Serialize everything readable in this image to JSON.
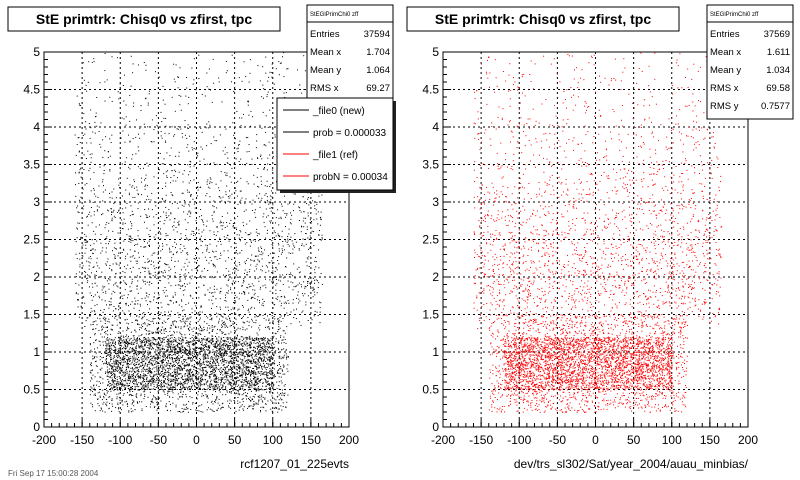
{
  "chart_data": [
    {
      "type": "scatter",
      "title": "StE primtrk: Chisq0 vs zfirst, tpc",
      "xlabel": "rcf1207_01_225evts",
      "ylabel": "",
      "xlim": [
        -200,
        200
      ],
      "ylim": [
        0,
        5
      ],
      "x_ticks": [
        "-200",
        "-150",
        "-100",
        "-50",
        "0",
        "50",
        "100",
        "150",
        "200"
      ],
      "y_ticks": [
        "0",
        "0.5",
        "1",
        "1.5",
        "2",
        "2.5",
        "3",
        "3.5",
        "4",
        "4.5",
        "5"
      ],
      "grid": true,
      "color": "#000000",
      "stats": {
        "name": "StEGlPrimChi0 zff",
        "rows": [
          {
            "label": "Entries",
            "value": "37594"
          },
          {
            "label": "Mean x",
            "value": "1.704"
          },
          {
            "label": "Mean y",
            "value": "1.064"
          },
          {
            "label": "RMS x",
            "value": "69.27"
          }
        ]
      },
      "legend": {
        "placement": "top-right",
        "entries": [
          {
            "label": "_file0 (new)",
            "color": "#000000"
          },
          {
            "label": "prob = 0.000033",
            "color": "#000000"
          },
          {
            "label": "_file1 (ref)",
            "color": "#ff0000"
          },
          {
            "label": "probN = 0.00034",
            "color": "#ff0000"
          }
        ]
      },
      "distribution": {
        "x_range": [
          -160,
          165
        ],
        "core_x_range": [
          -120,
          100
        ],
        "core_y_range": [
          0.5,
          1.2
        ],
        "dense_x_range": [
          -140,
          120
        ],
        "dense_y_range": [
          0.2,
          1.5
        ]
      }
    },
    {
      "type": "scatter",
      "title": "StE primtrk: Chisq0 vs zfirst, tpc",
      "xlabel": "dev/trs_sl302/Sat/year_2004/auau_minbias/",
      "ylabel": "",
      "xlim": [
        -200,
        200
      ],
      "ylim": [
        0,
        5
      ],
      "x_ticks": [
        "-200",
        "-150",
        "-100",
        "-50",
        "0",
        "50",
        "100",
        "150",
        "200"
      ],
      "y_ticks": [
        "0",
        "0.5",
        "1",
        "1.5",
        "2",
        "2.5",
        "3",
        "3.5",
        "4",
        "4.5",
        "5"
      ],
      "grid": true,
      "color": "#ff0000",
      "stats": {
        "name": "StEGlPrimChi0 zff",
        "rows": [
          {
            "label": "Entries",
            "value": "37569"
          },
          {
            "label": "Mean x",
            "value": "1.611"
          },
          {
            "label": "Mean y",
            "value": "1.034"
          },
          {
            "label": "RMS x",
            "value": "69.58"
          },
          {
            "label": "RMS y",
            "value": "0.7577"
          }
        ]
      },
      "distribution": {
        "x_range": [
          -160,
          165
        ],
        "core_x_range": [
          -120,
          100
        ],
        "core_y_range": [
          0.5,
          1.2
        ],
        "dense_x_range": [
          -140,
          120
        ],
        "dense_y_range": [
          0.2,
          1.5
        ]
      }
    }
  ],
  "footer_text": "Fri Sep 17 15:00:28 2004"
}
